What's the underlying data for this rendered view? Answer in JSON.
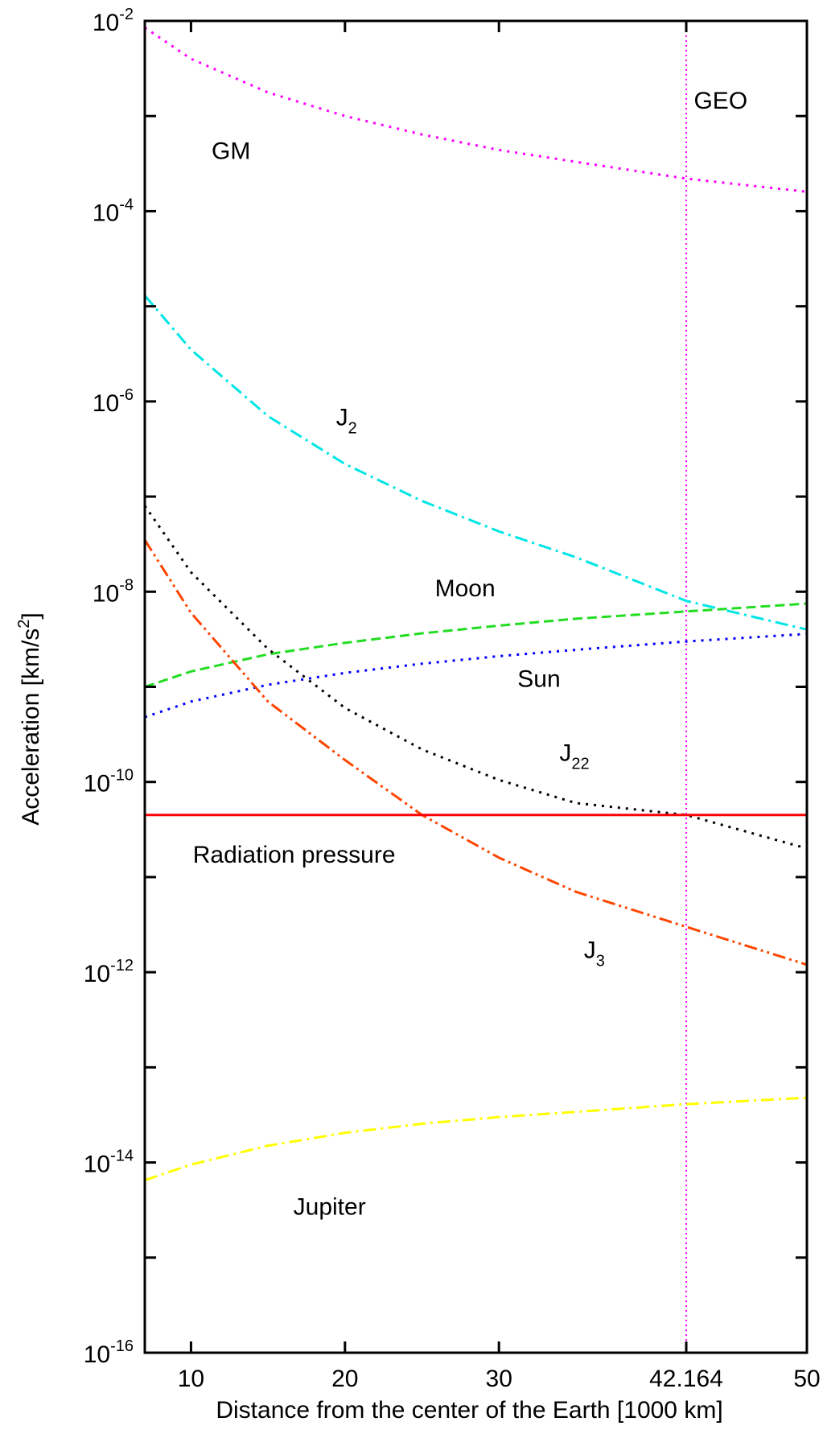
{
  "chart_data": {
    "type": "line",
    "xlabel": "Distance from the center of the Earth [1000 km]",
    "ylabel": "Acceleration [km/s2]",
    "xlim": [
      7,
      50
    ],
    "ylim_log10": [
      -16,
      -2
    ],
    "y_scale": "log",
    "grid": false,
    "legend": "none (inline annotations)",
    "x_ticks": [
      {
        "value": 10,
        "label": "10"
      },
      {
        "value": 20,
        "label": "20"
      },
      {
        "value": 30,
        "label": "30"
      },
      {
        "value": 42.164,
        "label": "42.164"
      },
      {
        "value": 50,
        "label": "50"
      }
    ],
    "y_major_ticks": [
      {
        "exp": -2,
        "base": "10",
        "sup": "-2"
      },
      {
        "exp": -4,
        "base": "10",
        "sup": "-4"
      },
      {
        "exp": -6,
        "base": "10",
        "sup": "-6"
      },
      {
        "exp": -8,
        "base": "10",
        "sup": "-8"
      },
      {
        "exp": -10,
        "base": "10",
        "sup": "-10"
      },
      {
        "exp": -12,
        "base": "10",
        "sup": "-12"
      },
      {
        "exp": -14,
        "base": "10",
        "sup": "-14"
      },
      {
        "exp": -16,
        "base": "10",
        "sup": "-16"
      }
    ],
    "y_minor_ticks_exp": [
      -3,
      -5,
      -7,
      -9,
      -11,
      -13,
      -15
    ],
    "vertical_line": {
      "x": 42.164,
      "color": "#ff00ff",
      "style": "dotted",
      "label": "GEO"
    },
    "series": [
      {
        "key": "gm",
        "color": "#ff00ff",
        "dash": "dotted",
        "x": [
          7,
          10,
          15,
          20,
          25,
          30,
          35,
          42.164,
          50
        ],
        "y": [
          0.0085,
          0.004,
          0.00177,
          0.001,
          0.00064,
          0.00044,
          0.00033,
          0.00022,
          0.00016
        ]
      },
      {
        "key": "j2",
        "color": "#00e5e5",
        "dash": "dashdot",
        "x": [
          7,
          10,
          15,
          20,
          25,
          30,
          35,
          42.164,
          50
        ],
        "y": [
          1.3e-05,
          3.5e-06,
          7e-07,
          2.2e-07,
          9e-08,
          4.3e-08,
          2.3e-08,
          8e-09,
          4e-09
        ]
      },
      {
        "key": "moon",
        "color": "#22dd22",
        "dash": "dashed",
        "x": [
          7,
          10,
          15,
          20,
          25,
          30,
          35,
          42.164,
          50
        ],
        "y": [
          1e-09,
          1.45e-09,
          2.2e-09,
          2.9e-09,
          3.65e-09,
          4.4e-09,
          5.2e-09,
          6.2e-09,
          7.5e-09
        ]
      },
      {
        "key": "sun",
        "color": "#0000ff",
        "dash": "dotted",
        "x": [
          7,
          10,
          15,
          20,
          25,
          30,
          35,
          42.164,
          50
        ],
        "y": [
          4.8e-10,
          7e-10,
          1.05e-09,
          1.4e-09,
          1.75e-09,
          2.1e-09,
          2.45e-09,
          3e-09,
          3.6e-09
        ]
      },
      {
        "key": "j22",
        "color": "#000000",
        "dash": "dotted",
        "x": [
          7,
          10,
          15,
          20,
          25,
          30,
          35,
          42.164,
          50
        ],
        "y": [
          8e-08,
          1.6e-08,
          2.5e-09,
          6e-10,
          2.2e-10,
          1.05e-10,
          6e-11,
          4.5e-11,
          2e-11
        ]
      },
      {
        "key": "j3",
        "color": "#ff4500",
        "dash": "dashdotdot",
        "x": [
          7,
          10,
          15,
          20,
          25,
          30,
          35,
          42.164,
          50
        ],
        "y": [
          3.5e-08,
          6e-09,
          7e-10,
          1.7e-10,
          4.5e-11,
          1.6e-11,
          7e-12,
          3e-12,
          1.2e-12
        ]
      },
      {
        "key": "rp",
        "color": "#ff0000",
        "dash": "solid",
        "x": [
          7,
          50
        ],
        "y": [
          4.5e-11,
          4.5e-11
        ]
      },
      {
        "key": "jupiter",
        "color": "#ffff00",
        "dash": "dashdot",
        "x": [
          7,
          10,
          15,
          20,
          25,
          30,
          35,
          42.164,
          50
        ],
        "y": [
          6.5e-15,
          9.5e-15,
          1.5e-14,
          2.05e-14,
          2.55e-14,
          3e-14,
          3.4e-14,
          4.1e-14,
          4.8e-14
        ]
      }
    ],
    "annotations": [
      {
        "key": "gm",
        "base": "GM",
        "sub": "",
        "x": 12.6,
        "exp": -3.45
      },
      {
        "key": "geo",
        "base": "GEO",
        "sub": "",
        "x": 44.4,
        "exp": -2.92
      },
      {
        "key": "j2",
        "base": "J",
        "sub": "2",
        "x": 20.1,
        "exp": -6.25
      },
      {
        "key": "moon",
        "base": "Moon",
        "sub": "",
        "x": 27.8,
        "exp": -8.05
      },
      {
        "key": "sun",
        "base": "Sun",
        "sub": "",
        "x": 32.6,
        "exp": -9.0
      },
      {
        "key": "j22",
        "base": "J",
        "sub": "22",
        "x": 34.9,
        "exp": -9.78
      },
      {
        "key": "rp",
        "base": "Radiation pressure",
        "sub": "",
        "x": 16.7,
        "exp": -10.85
      },
      {
        "key": "j3",
        "base": "J",
        "sub": "3",
        "x": 36.2,
        "exp": -11.85
      },
      {
        "key": "jupiter",
        "base": "Jupiter",
        "sub": "",
        "x": 19.0,
        "exp": -14.55
      }
    ]
  }
}
